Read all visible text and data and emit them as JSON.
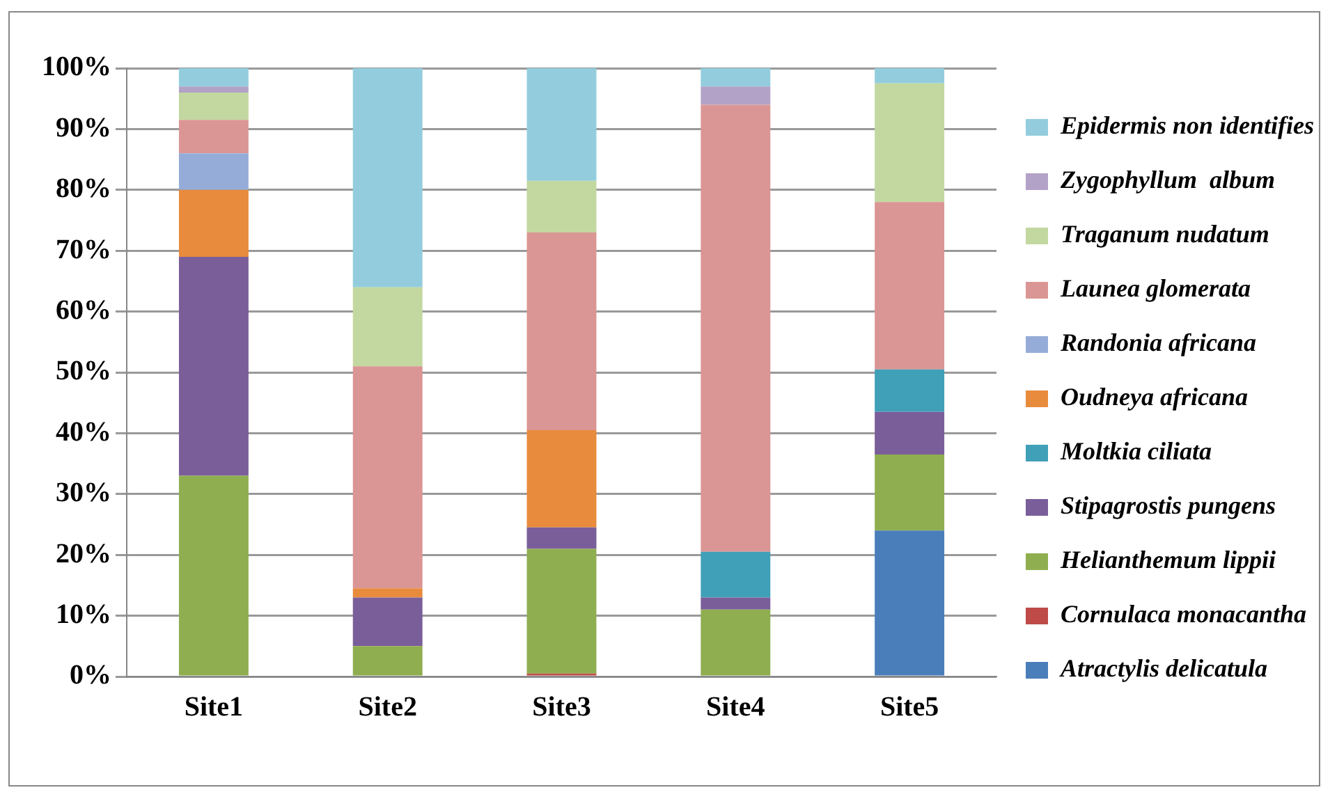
{
  "chart_data": {
    "type": "bar",
    "stacked": true,
    "categories": [
      "Site1",
      "Site2",
      "Site3",
      "Site4",
      "Site5"
    ],
    "series": [
      {
        "name": "Atractylis delicatula",
        "color": "#4a7ebb",
        "values": [
          0,
          0,
          0,
          0,
          24
        ]
      },
      {
        "name": "Cornulaca monacantha",
        "color": "#be4b48",
        "values": [
          0,
          0,
          0.5,
          0,
          0
        ]
      },
      {
        "name": "Helianthemum lippii",
        "color": "#8fae50",
        "values": [
          33,
          5,
          20.5,
          11,
          12.5
        ]
      },
      {
        "name": "Stipagrostis pungens",
        "color": "#7a5e9a",
        "values": [
          36,
          8,
          3.5,
          2,
          7
        ]
      },
      {
        "name": "Moltkia ciliata",
        "color": "#3fa0b8",
        "values": [
          0,
          0,
          0,
          7.5,
          7
        ]
      },
      {
        "name": "Oudneya africana",
        "color": "#e88b3d",
        "values": [
          11,
          1.5,
          16,
          0,
          0
        ]
      },
      {
        "name": "Randonia africana",
        "color": "#96acd8",
        "values": [
          6,
          0,
          0,
          0,
          0
        ]
      },
      {
        "name": "Launea glomerata",
        "color": "#da9694",
        "values": [
          5.5,
          36.5,
          32.5,
          73.5,
          27.5
        ]
      },
      {
        "name": "Traganum nudatum",
        "color": "#c3d8a0",
        "values": [
          4.5,
          13,
          8.5,
          0,
          19.5
        ]
      },
      {
        "name": "Zygophyllum  album",
        "color": "#b3a2c7",
        "values": [
          1,
          0,
          0,
          3,
          0
        ]
      },
      {
        "name": "Epidermis non identifies",
        "color": "#93cddd",
        "values": [
          3,
          36,
          18.5,
          3,
          2.5
        ]
      }
    ],
    "ylim": [
      0,
      100
    ],
    "yticks": [
      {
        "value": 0,
        "label": "0%"
      },
      {
        "value": 10,
        "label": "10%"
      },
      {
        "value": 20,
        "label": "20%"
      },
      {
        "value": 30,
        "label": "30%"
      },
      {
        "value": 40,
        "label": "40%"
      },
      {
        "value": 50,
        "label": "50%"
      },
      {
        "value": 60,
        "label": "60%"
      },
      {
        "value": 70,
        "label": "70%"
      },
      {
        "value": 80,
        "label": "80%"
      },
      {
        "value": 90,
        "label": "90%"
      },
      {
        "value": 100,
        "label": "100%"
      }
    ],
    "grid": "y",
    "legend": "right"
  }
}
